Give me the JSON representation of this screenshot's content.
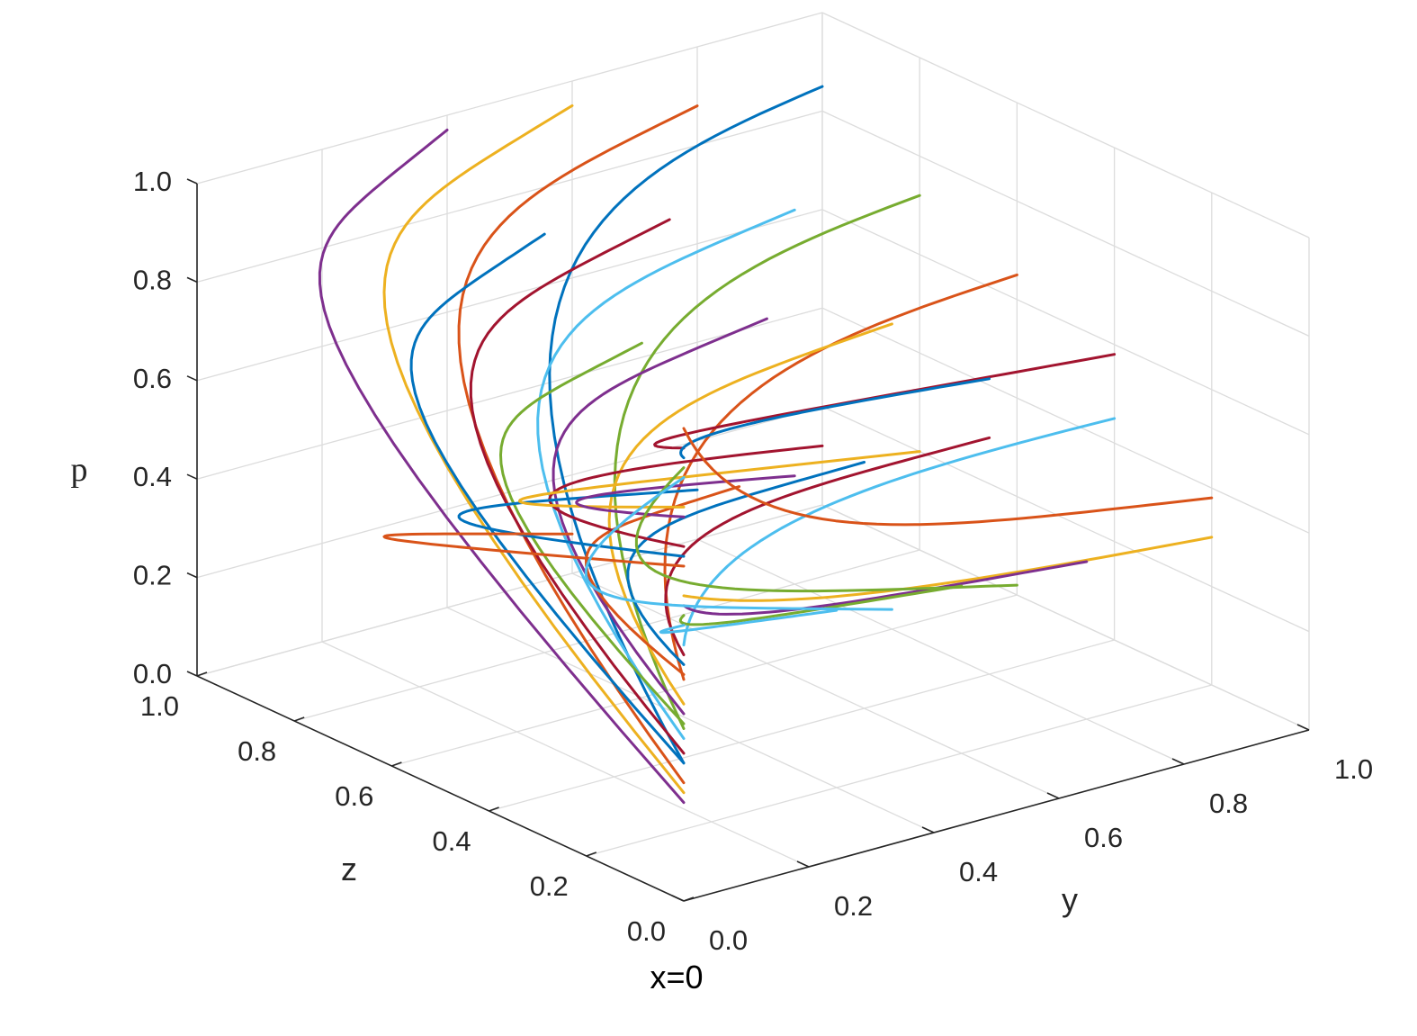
{
  "figure": {
    "caption": "x=0"
  },
  "chart_data": {
    "type": "line",
    "subtype": "3d-trajectories",
    "title": "",
    "condition": "x=0",
    "axes": {
      "y": {
        "label": "y",
        "range": [
          0,
          1
        ],
        "ticks": [
          "0.0",
          "0.2",
          "0.4",
          "0.6",
          "0.8",
          "1.0"
        ]
      },
      "z": {
        "label": "z",
        "range": [
          0,
          1
        ],
        "ticks": [
          "0.0",
          "0.2",
          "0.4",
          "0.6",
          "0.8",
          "1.0"
        ]
      },
      "p": {
        "label": "p",
        "range": [
          0,
          1
        ],
        "ticks": [
          "0.0",
          "0.2",
          "0.4",
          "0.6",
          "0.8",
          "1.0"
        ]
      }
    },
    "grid": true,
    "legend": "none",
    "colors": [
      "#0072BD",
      "#D95319",
      "#EDB120",
      "#7E2F8E",
      "#77AC30",
      "#4DBEEE",
      "#A2142F"
    ],
    "series": [
      {
        "y": 1.0,
        "z": 1.0,
        "p": 0.85,
        "start": {
          "y": 0.0,
          "z": 0.0,
          "p": 0.28
        }
      },
      {
        "y": 0.8,
        "z": 1.0,
        "p": 0.88,
        "start": {
          "y": 0.0,
          "z": 0.0,
          "p": 0.24
        }
      },
      {
        "y": 0.6,
        "z": 1.0,
        "p": 0.95,
        "start": {
          "y": 0.0,
          "z": 0.0,
          "p": 0.22
        }
      },
      {
        "y": 0.4,
        "z": 1.0,
        "p": 0.97,
        "start": {
          "y": 0.0,
          "z": 0.0,
          "p": 0.2
        }
      },
      {
        "y": 1.0,
        "z": 0.8,
        "p": 0.72,
        "start": {
          "y": 0.0,
          "z": 0.0,
          "p": 0.35
        }
      },
      {
        "y": 0.8,
        "z": 0.8,
        "p": 0.76,
        "start": {
          "y": 0.0,
          "z": 0.0,
          "p": 0.33
        }
      },
      {
        "y": 0.6,
        "z": 0.8,
        "p": 0.81,
        "start": {
          "y": 0.0,
          "z": 0.0,
          "p": 0.3
        }
      },
      {
        "y": 0.4,
        "z": 0.8,
        "p": 0.85,
        "start": {
          "y": 0.0,
          "z": 0.0,
          "p": 0.28
        }
      },
      {
        "y": 1.0,
        "z": 0.6,
        "p": 0.65,
        "start": {
          "y": 0.0,
          "z": 0.0,
          "p": 0.45
        }
      },
      {
        "y": 0.8,
        "z": 0.6,
        "p": 0.62,
        "start": {
          "y": 0.0,
          "z": 0.0,
          "p": 0.4
        }
      },
      {
        "y": 0.6,
        "z": 0.6,
        "p": 0.7,
        "start": {
          "y": 0.0,
          "z": 0.0,
          "p": 0.38
        }
      },
      {
        "y": 0.4,
        "z": 0.6,
        "p": 0.72,
        "start": {
          "y": 0.0,
          "z": 0.0,
          "p": 0.36
        }
      },
      {
        "y": 1.0,
        "z": 0.4,
        "p": 0.45,
        "start": {
          "y": 0.0,
          "z": 0.0,
          "p": 0.52
        }
      },
      {
        "y": 0.8,
        "z": 0.4,
        "p": 0.48,
        "start": {
          "y": 0.0,
          "z": 0.0,
          "p": 0.5
        }
      },
      {
        "y": 0.6,
        "z": 0.4,
        "p": 0.5,
        "start": {
          "y": 0.0,
          "z": 0.0,
          "p": 0.48
        }
      },
      {
        "y": 0.4,
        "z": 0.4,
        "p": 0.52,
        "start": {
          "y": 0.0,
          "z": 0.0,
          "p": 0.46
        }
      },
      {
        "y": 1.0,
        "z": 0.2,
        "p": 0.3,
        "start": {
          "y": 0.0,
          "z": 0.0,
          "p": 0.62
        }
      },
      {
        "y": 0.8,
        "z": 0.2,
        "p": 0.32,
        "start": {
          "y": 0.0,
          "z": 0.0,
          "p": 0.6
        }
      },
      {
        "y": 0.6,
        "z": 0.2,
        "p": 0.34,
        "start": {
          "y": 0.0,
          "z": 0.0,
          "p": 0.58
        }
      },
      {
        "y": 0.4,
        "z": 0.2,
        "p": 0.36,
        "start": {
          "y": 0.0,
          "z": 0.0,
          "p": 0.56
        }
      },
      {
        "y": 1.0,
        "z": 1.0,
        "p": 0.12,
        "start": {
          "y": 0.0,
          "z": 0.0,
          "p": 0.72
        }
      },
      {
        "y": 0.8,
        "z": 1.0,
        "p": 0.1,
        "start": {
          "y": 0.0,
          "z": 0.0,
          "p": 0.7
        }
      },
      {
        "y": 0.6,
        "z": 1.0,
        "p": 0.08,
        "start": {
          "y": 0.0,
          "z": 0.0,
          "p": 0.68
        }
      },
      {
        "y": 1.0,
        "z": 0.8,
        "p": 0.2,
        "start": {
          "y": 0.0,
          "z": 0.0,
          "p": 0.8
        }
      },
      {
        "y": 0.8,
        "z": 0.8,
        "p": 0.22,
        "start": {
          "y": 0.0,
          "z": 0.0,
          "p": 0.78
        }
      },
      {
        "y": 1.0,
        "z": 0.6,
        "p": 0.02,
        "start": {
          "y": 0.0,
          "z": 0.0,
          "p": 0.88
        }
      },
      {
        "y": 0.8,
        "z": 0.6,
        "p": 0.04,
        "start": {
          "y": 0.0,
          "z": 0.0,
          "p": 0.86
        }
      },
      {
        "y": 1.0,
        "z": 0.4,
        "p": 0.58,
        "start": {
          "y": 0.0,
          "z": 0.0,
          "p": 0.92
        }
      },
      {
        "y": 0.8,
        "z": 0.4,
        "p": 0.6,
        "start": {
          "y": 0.0,
          "z": 0.0,
          "p": 0.9
        }
      },
      {
        "y": 1.0,
        "z": 0.2,
        "p": 0.38,
        "start": {
          "y": 0.0,
          "z": 0.0,
          "p": 0.96
        }
      }
    ]
  }
}
